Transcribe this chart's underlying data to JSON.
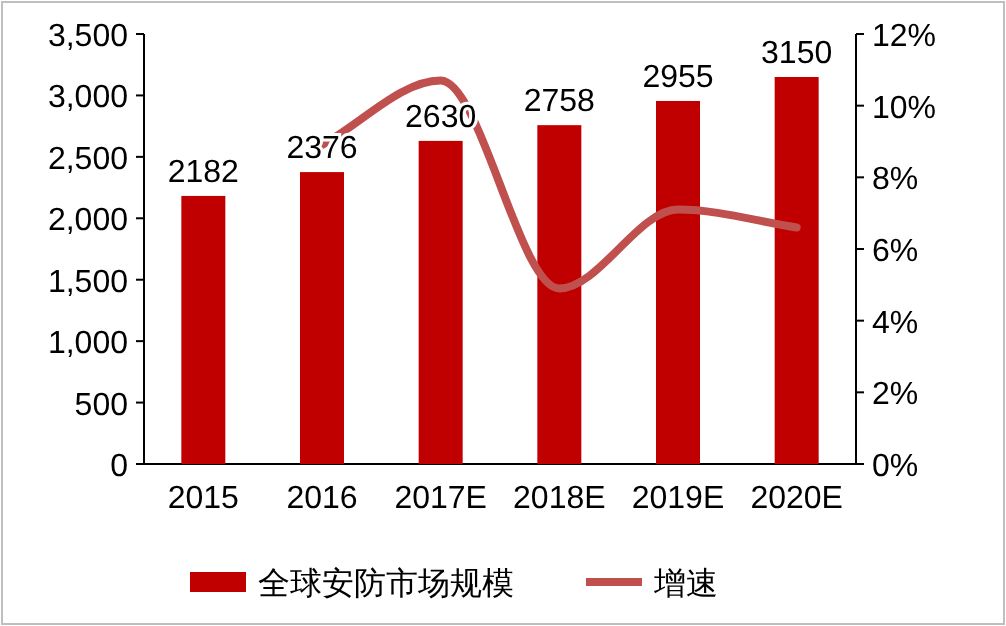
{
  "chart_data": {
    "type": "bar",
    "categories": [
      "2015",
      "2016",
      "2017E",
      "2018E",
      "2019E",
      "2020E"
    ],
    "series": [
      {
        "name": "全球安防市场规模",
        "color": "#c00000",
        "values": [
          2182,
          2376,
          2630,
          2758,
          2955,
          3150
        ],
        "value_labels": [
          "2182",
          "2376",
          "2630",
          "2758",
          "2955",
          "3150"
        ]
      },
      {
        "name": "增速",
        "type": "line",
        "axis": "y2",
        "color": "#c0504d",
        "values": [
          null,
          8.9,
          10.7,
          4.9,
          7.1,
          6.6
        ]
      }
    ],
    "ylim": [
      0,
      3500
    ],
    "yticks": [
      0,
      500,
      {
        "value": 1000,
        "label": "1,000"
      },
      {
        "value": 1500,
        "label": "1,500"
      },
      {
        "value": 2000,
        "label": "2,000"
      },
      {
        "value": 2500,
        "label": "2,500"
      },
      {
        "value": 3000,
        "label": "3,000"
      },
      {
        "value": 3500,
        "label": "3,500"
      }
    ],
    "y2lim": [
      0,
      12
    ],
    "y2ticks": [
      {
        "value": 0,
        "label": "0%"
      },
      {
        "value": 2,
        "label": "2%"
      },
      {
        "value": 4,
        "label": "4%"
      },
      {
        "value": 6,
        "label": "6%"
      },
      {
        "value": 8,
        "label": "8%"
      },
      {
        "value": 10,
        "label": "10%"
      },
      {
        "value": 12,
        "label": "12%"
      }
    ],
    "legend": "bottom"
  }
}
